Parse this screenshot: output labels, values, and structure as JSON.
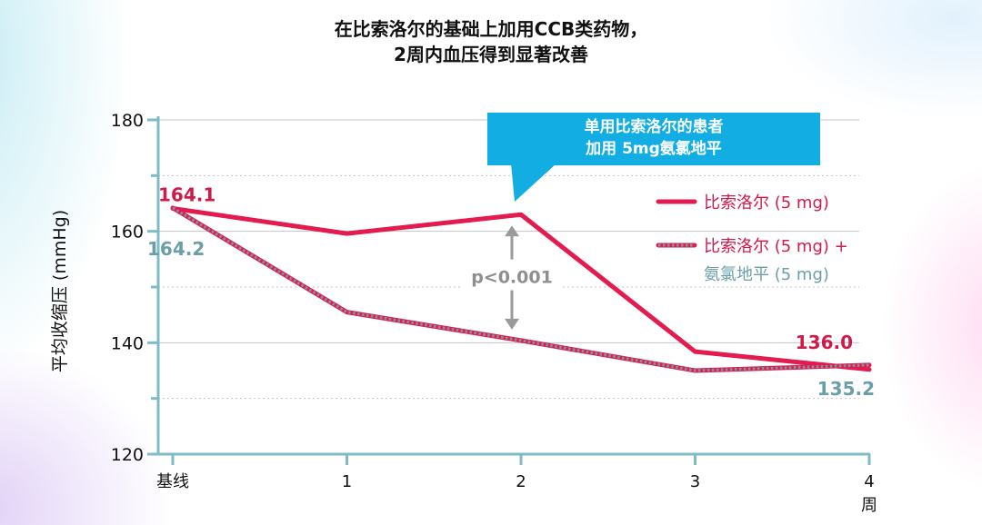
{
  "title": {
    "line1": "在比索洛尔的基础上加用CCB类药物，",
    "line2": "2周内血压得到显著改善"
  },
  "callout": {
    "line1": "单用比索洛尔的患者",
    "line2": "加用 5mg氨氯地平"
  },
  "colors": {
    "series_red": "#e31b4f",
    "series_teal": "#6b9fa8",
    "axis": "#7fbcc7",
    "grid": "#c4c4c4",
    "callout": "#12aee3",
    "arrow": "#9a9a9a",
    "label_red": "#d21a4a",
    "label_teal": "#6a9ea8"
  },
  "chart_data": {
    "type": "line",
    "categories": [
      "基线",
      "1",
      "2",
      "3",
      "4"
    ],
    "x_unit": "周",
    "ylabel": "平均收缩压 (mmHg)",
    "ylim": [
      120,
      180
    ],
    "yticks": [
      120,
      140,
      160,
      180
    ],
    "grid": true,
    "legend_position": "right",
    "series": [
      {
        "name": "比索洛尔 (5 mg)",
        "style": "solid",
        "values": [
          164.1,
          159.6,
          163.0,
          138.4,
          135.2
        ]
      },
      {
        "name": "比索洛尔 (5 mg) + 氨氯地平 (5 mg)",
        "legend_line1": "比索洛尔 (5 mg) +",
        "legend_line2": "氨氯地平 (5 mg)",
        "style": "dotted",
        "values": [
          164.2,
          145.5,
          140.4,
          135.0,
          136.0
        ]
      }
    ],
    "point_labels": [
      {
        "text": "164.1",
        "series": 0,
        "index": 0
      },
      {
        "text": "164.2",
        "series": 1,
        "index": 0
      },
      {
        "text": "136.0",
        "series": 1,
        "index": 4
      },
      {
        "text": "135.2",
        "series": 0,
        "index": 4
      }
    ],
    "annotation": {
      "text": "p<0.001",
      "category_index": 2,
      "from": 163.0,
      "to": 140.4
    }
  }
}
